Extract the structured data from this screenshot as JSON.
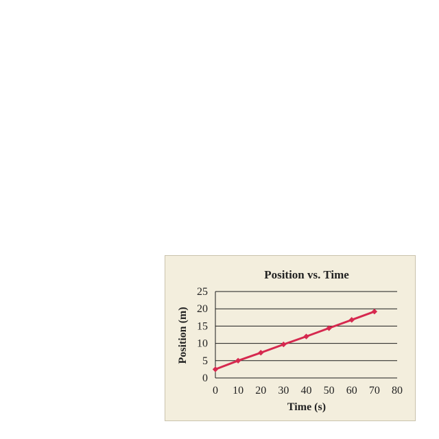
{
  "chart_data": {
    "type": "line",
    "title": "Position vs. Time",
    "xlabel": "Time (s)",
    "ylabel": "Position (m)",
    "xlim": [
      0,
      80
    ],
    "ylim": [
      0,
      25
    ],
    "x_ticks": [
      "0",
      "10",
      "20",
      "30",
      "40",
      "50",
      "60",
      "70",
      "80"
    ],
    "y_ticks": [
      "0",
      "5",
      "10",
      "15",
      "20",
      "25"
    ],
    "grid": "horizontal",
    "series": [
      {
        "x": [
          0,
          10,
          20,
          30,
          40,
          50,
          60,
          70
        ],
        "y": [
          2.5,
          5,
          7.3,
          9.7,
          12,
          14.4,
          16.8,
          19.2
        ],
        "color": "#d6294f",
        "marker": "diamond"
      }
    ]
  }
}
